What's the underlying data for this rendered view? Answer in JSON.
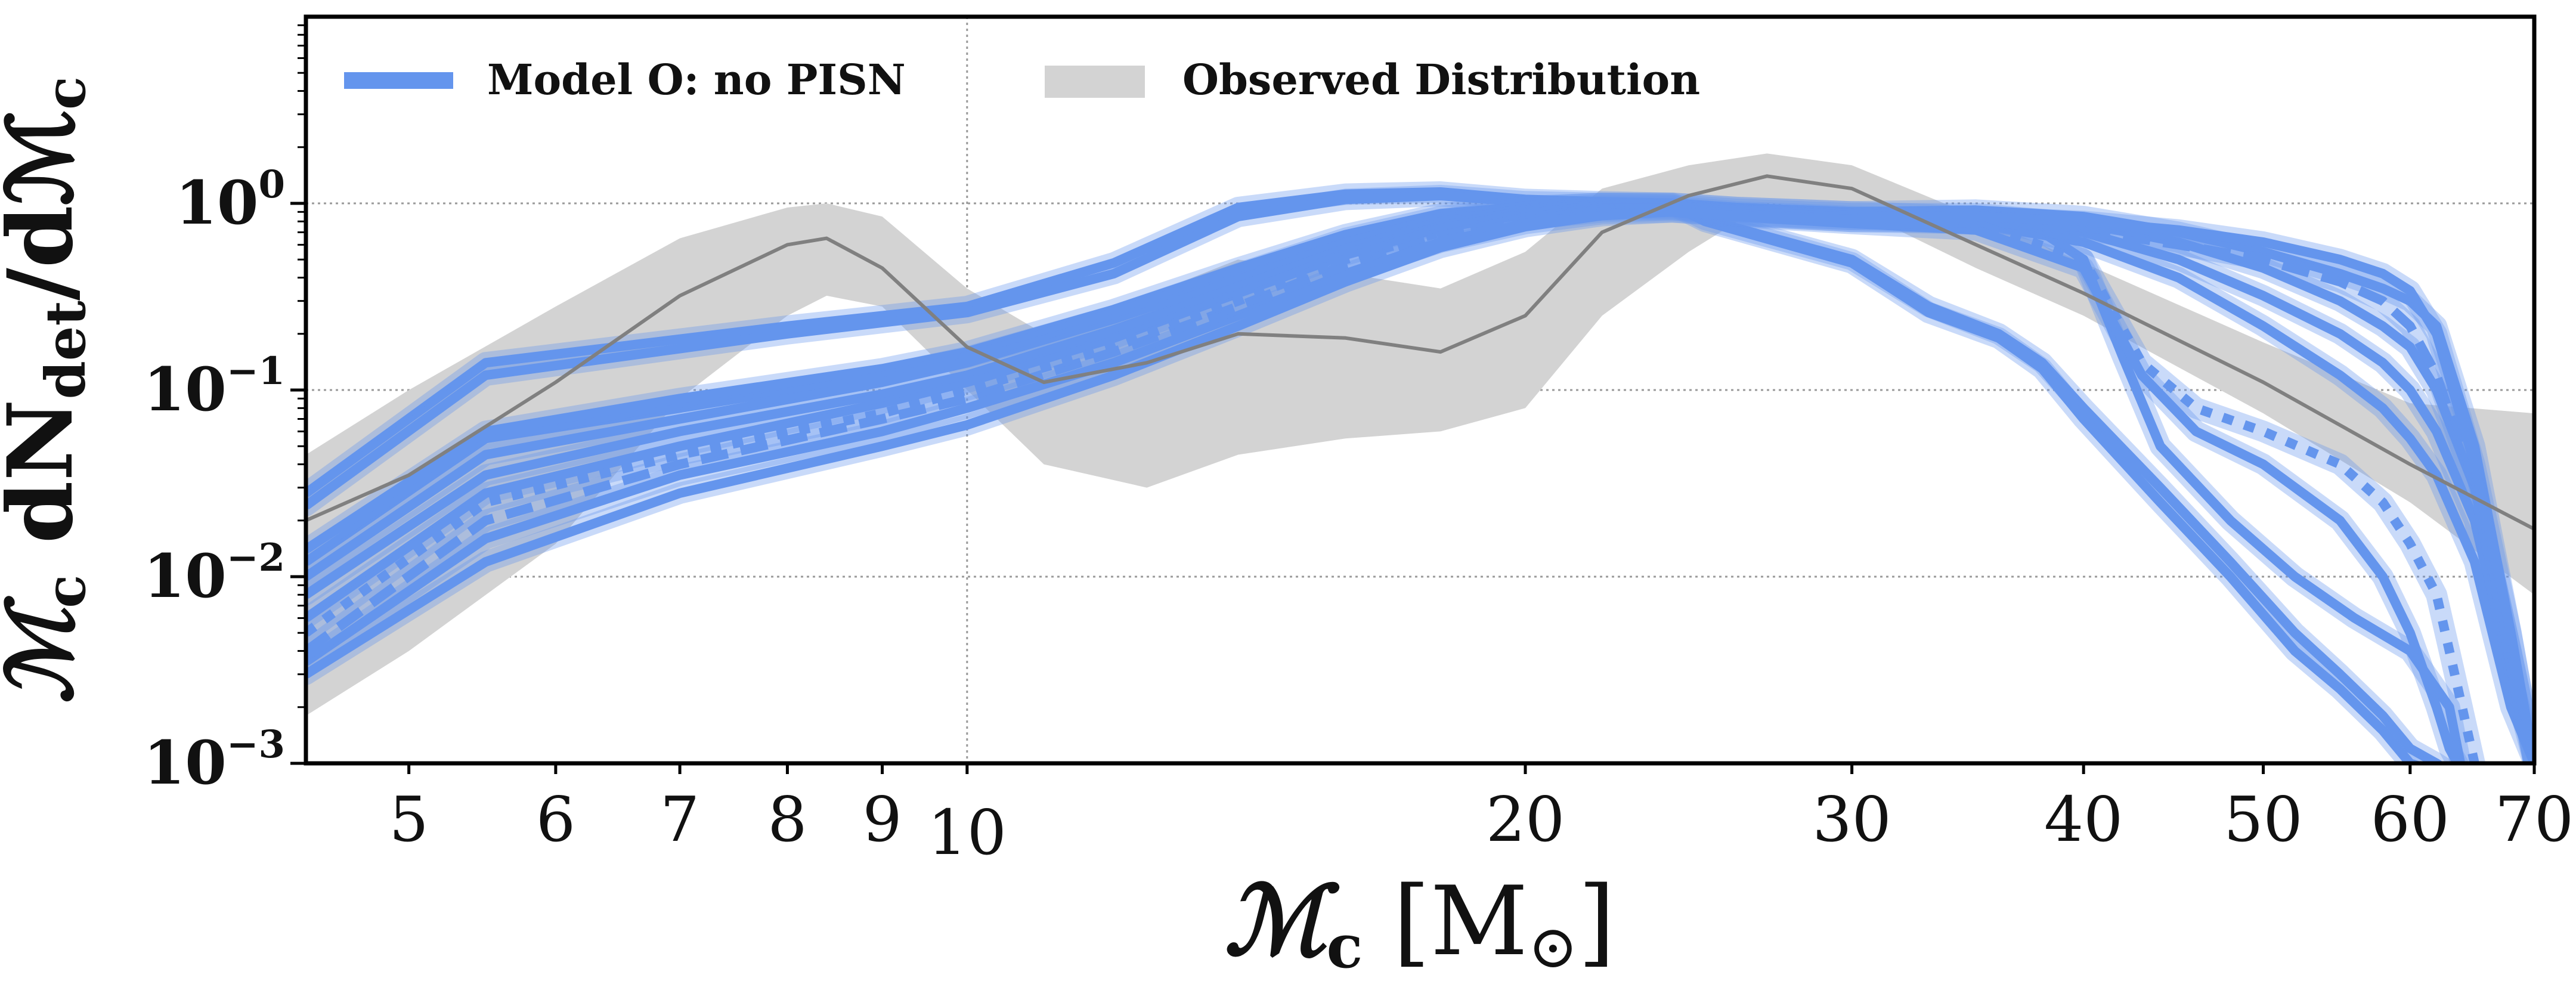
{
  "chart_data": {
    "type": "line",
    "title": "",
    "x_scale": "log",
    "y_scale": "log",
    "xlim": [
      4.4,
      70
    ],
    "ylim": [
      0.001,
      10
    ],
    "x_ticks": [
      {
        "value": 5,
        "label": "5"
      },
      {
        "value": 6,
        "label": "6"
      },
      {
        "value": 7,
        "label": "7"
      },
      {
        "value": 8,
        "label": "8"
      },
      {
        "value": 9,
        "label": "9"
      },
      {
        "value": 10,
        "label": "10"
      },
      {
        "value": 20,
        "label": "20"
      },
      {
        "value": 30,
        "label": "30"
      },
      {
        "value": 40,
        "label": "40"
      },
      {
        "value": 50,
        "label": "50"
      },
      {
        "value": 60,
        "label": "60"
      },
      {
        "value": 70,
        "label": "70"
      }
    ],
    "y_ticks": [
      {
        "value": 1,
        "base": "10",
        "exp": "0"
      },
      {
        "value": 0.1,
        "base": "10",
        "exp": "−1"
      },
      {
        "value": 0.01,
        "base": "10",
        "exp": "−2"
      },
      {
        "value": 0.001,
        "base": "10",
        "exp": "−3"
      }
    ],
    "xlabel": {
      "main": "ℳ",
      "sub": "c",
      "unit_open": " [M",
      "unit_sym": "⊙",
      "unit_close": "]"
    },
    "ylabel": {
      "m1": "ℳ",
      "s1": "c",
      "d1": " dN",
      "s2": "det",
      "d2": "/dℳ",
      "s3": "c"
    },
    "grid": {
      "vertical_at": [
        10
      ],
      "horizontal_at": [
        1,
        0.1,
        0.01
      ],
      "style": "dotted"
    },
    "legend": {
      "placement": "top-left",
      "entries": [
        {
          "label": "Model O: no PISN",
          "kind": "line",
          "color": "#6495ED"
        },
        {
          "label": "Observed Distribution",
          "kind": "patch",
          "color": "#D3D3D3"
        }
      ]
    },
    "colors": {
      "model": "#6495ED",
      "band": "#D3D3D3",
      "observed_median": "#808080"
    },
    "observed": {
      "x": [
        4.4,
        5,
        6,
        7,
        8,
        8.4,
        9,
        10,
        11,
        12.5,
        14,
        16,
        18,
        20,
        22,
        24.5,
        27,
        30,
        35,
        40,
        50,
        60,
        70
      ],
      "median": [
        0.02,
        0.035,
        0.11,
        0.32,
        0.6,
        0.65,
        0.45,
        0.17,
        0.11,
        0.14,
        0.2,
        0.19,
        0.16,
        0.25,
        0.7,
        1.1,
        1.4,
        1.2,
        0.6,
        0.33,
        0.11,
        0.04,
        0.018
      ],
      "lower": [
        0.0018,
        0.004,
        0.015,
        0.09,
        0.25,
        0.32,
        0.28,
        0.1,
        0.04,
        0.03,
        0.045,
        0.055,
        0.06,
        0.08,
        0.25,
        0.55,
        1.0,
        0.95,
        0.45,
        0.25,
        0.075,
        0.025,
        0.008
      ],
      "upper": [
        0.045,
        0.1,
        0.28,
        0.65,
        0.95,
        1.0,
        0.85,
        0.35,
        0.2,
        0.32,
        0.5,
        0.42,
        0.35,
        0.55,
        1.2,
        1.6,
        1.85,
        1.6,
        0.85,
        0.48,
        0.18,
        0.085,
        0.075
      ]
    },
    "series": [
      {
        "style": "solid",
        "x": [
          4.4,
          5.5,
          8,
          10,
          12,
          14,
          16,
          18,
          20,
          22,
          24,
          25,
          30,
          33,
          36,
          38,
          40,
          44,
          48,
          52,
          55,
          58,
          60,
          62,
          63
        ],
        "values": [
          0.028,
          0.14,
          0.22,
          0.28,
          0.48,
          0.95,
          1.12,
          1.15,
          1.05,
          1.02,
          1.0,
          0.82,
          0.5,
          0.28,
          0.2,
          0.14,
          0.08,
          0.03,
          0.012,
          0.005,
          0.003,
          0.0018,
          0.0012,
          0.001,
          0.0009
        ]
      },
      {
        "style": "solid",
        "x": [
          4.4,
          5.5,
          8,
          10,
          12,
          14,
          16,
          18,
          20,
          22,
          24,
          25,
          30,
          33,
          36,
          38,
          40,
          44,
          48,
          52,
          55,
          58,
          60,
          62
        ],
        "values": [
          0.024,
          0.12,
          0.2,
          0.26,
          0.42,
          0.85,
          1.05,
          1.1,
          1.02,
          1.0,
          0.98,
          0.8,
          0.48,
          0.26,
          0.19,
          0.13,
          0.07,
          0.025,
          0.01,
          0.004,
          0.0025,
          0.0015,
          0.001,
          0.0009
        ]
      },
      {
        "style": "solid",
        "x": [
          4.4,
          5.5,
          7,
          9,
          10,
          12,
          14,
          16,
          18,
          20,
          22,
          24,
          26,
          30,
          35,
          38,
          40,
          42,
          44,
          48,
          52,
          56,
          60,
          63,
          64
        ],
        "values": [
          0.012,
          0.055,
          0.08,
          0.12,
          0.15,
          0.25,
          0.42,
          0.65,
          0.85,
          0.95,
          1.0,
          1.0,
          0.95,
          0.9,
          0.85,
          0.7,
          0.5,
          0.15,
          0.05,
          0.02,
          0.01,
          0.006,
          0.004,
          0.002,
          0.0009
        ]
      },
      {
        "style": "solid",
        "x": [
          4.4,
          5.5,
          7,
          9,
          10,
          12,
          14,
          16,
          18,
          20,
          22,
          24,
          26,
          30,
          35,
          40,
          45,
          50,
          55,
          58,
          60,
          62,
          65,
          68,
          70
        ],
        "values": [
          0.014,
          0.06,
          0.09,
          0.13,
          0.16,
          0.27,
          0.45,
          0.68,
          0.88,
          0.96,
          1.0,
          1.0,
          0.95,
          0.9,
          0.92,
          0.85,
          0.7,
          0.55,
          0.42,
          0.35,
          0.3,
          0.22,
          0.05,
          0.005,
          0.001
        ]
      },
      {
        "style": "solid",
        "x": [
          4.4,
          5.5,
          7,
          9,
          10,
          12,
          14,
          16,
          18,
          20,
          22,
          24,
          26,
          30,
          35,
          40,
          45,
          50,
          55,
          58,
          60,
          62,
          65,
          68,
          70
        ],
        "values": [
          0.01,
          0.045,
          0.07,
          0.11,
          0.14,
          0.24,
          0.4,
          0.62,
          0.82,
          0.93,
          0.98,
          0.98,
          0.93,
          0.88,
          0.88,
          0.78,
          0.62,
          0.45,
          0.3,
          0.22,
          0.17,
          0.1,
          0.03,
          0.004,
          0.001
        ]
      },
      {
        "style": "solid",
        "x": [
          4.4,
          5.5,
          7,
          9,
          10,
          12,
          14,
          16,
          18,
          20,
          22,
          24,
          26,
          30,
          35,
          40,
          45,
          50,
          55,
          58,
          60,
          62,
          65,
          68,
          70
        ],
        "values": [
          0.008,
          0.035,
          0.06,
          0.095,
          0.12,
          0.21,
          0.36,
          0.57,
          0.78,
          0.9,
          0.96,
          0.96,
          0.9,
          0.85,
          0.82,
          0.7,
          0.5,
          0.32,
          0.2,
          0.14,
          0.1,
          0.06,
          0.02,
          0.003,
          0.001
        ]
      },
      {
        "style": "solid",
        "x": [
          4.4,
          5.5,
          7,
          9,
          10,
          12,
          14,
          16,
          18,
          20,
          22,
          24,
          26,
          30,
          35,
          40,
          45,
          50,
          55,
          58,
          60,
          62,
          65,
          68,
          70
        ],
        "values": [
          0.006,
          0.028,
          0.05,
          0.085,
          0.11,
          0.19,
          0.33,
          0.53,
          0.74,
          0.87,
          0.94,
          0.94,
          0.88,
          0.82,
          0.78,
          0.62,
          0.4,
          0.22,
          0.12,
          0.08,
          0.055,
          0.035,
          0.012,
          0.002,
          0.001
        ]
      },
      {
        "style": "dashed",
        "x": [
          4.4,
          5.5,
          7,
          9,
          10,
          12,
          14,
          16,
          18,
          20,
          22,
          24,
          26,
          30,
          35,
          40,
          45,
          50,
          55,
          58,
          60,
          62,
          65,
          68,
          70
        ],
        "values": [
          0.004,
          0.02,
          0.04,
          0.07,
          0.09,
          0.16,
          0.28,
          0.47,
          0.68,
          0.82,
          0.9,
          0.92,
          0.86,
          0.8,
          0.8,
          0.72,
          0.6,
          0.5,
          0.38,
          0.3,
          0.22,
          0.12,
          0.03,
          0.004,
          0.001
        ]
      },
      {
        "style": "dotted",
        "x": [
          4.4,
          5.5,
          7,
          9,
          10,
          12,
          14,
          16,
          18,
          20,
          22,
          24,
          26,
          30,
          35,
          40,
          43,
          46,
          50,
          55,
          58,
          60,
          62,
          63,
          64,
          65
        ],
        "values": [
          0.005,
          0.025,
          0.045,
          0.075,
          0.1,
          0.17,
          0.3,
          0.5,
          0.7,
          0.85,
          0.92,
          0.93,
          0.87,
          0.8,
          0.78,
          0.5,
          0.14,
          0.08,
          0.06,
          0.04,
          0.025,
          0.015,
          0.008,
          0.004,
          0.002,
          0.001
        ]
      },
      {
        "style": "solid",
        "x": [
          4.4,
          5.5,
          7,
          9,
          10,
          12,
          14,
          16,
          18,
          20,
          22,
          24,
          26,
          30,
          35,
          40,
          43,
          46,
          50,
          55,
          58,
          60,
          62,
          63,
          64
        ],
        "values": [
          0.0035,
          0.016,
          0.035,
          0.06,
          0.08,
          0.14,
          0.25,
          0.42,
          0.62,
          0.78,
          0.88,
          0.9,
          0.85,
          0.78,
          0.72,
          0.45,
          0.12,
          0.06,
          0.04,
          0.02,
          0.01,
          0.005,
          0.002,
          0.0012,
          0.0009
        ]
      },
      {
        "style": "solid",
        "x": [
          4.4,
          5.5,
          7,
          9,
          10,
          12,
          14,
          16,
          18,
          20,
          22,
          24,
          26,
          30,
          35,
          40,
          45,
          50,
          55,
          58,
          60,
          62,
          65,
          68,
          70
        ],
        "values": [
          0.003,
          0.012,
          0.028,
          0.05,
          0.065,
          0.12,
          0.22,
          0.38,
          0.58,
          0.75,
          0.86,
          0.9,
          0.86,
          0.82,
          0.85,
          0.8,
          0.72,
          0.62,
          0.5,
          0.42,
          0.34,
          0.2,
          0.04,
          0.005,
          0.001
        ]
      }
    ]
  }
}
